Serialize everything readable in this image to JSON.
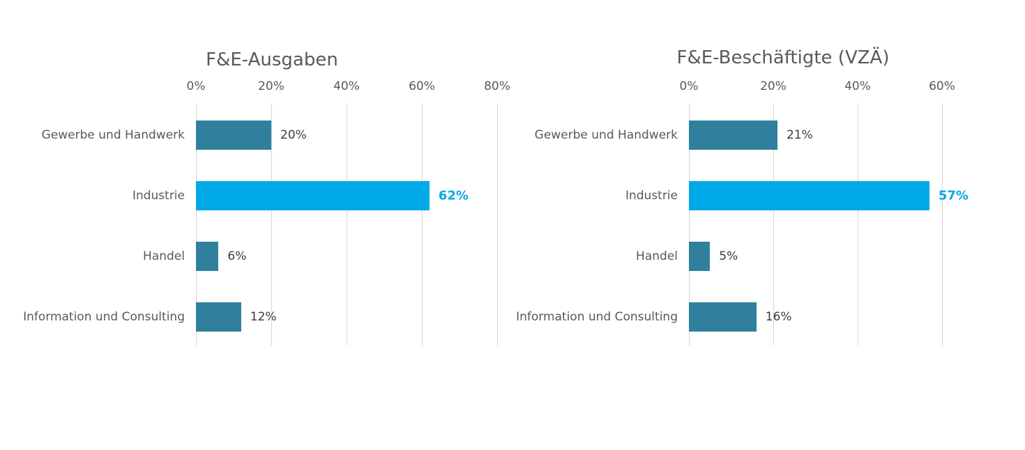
{
  "page": {
    "background_color": "#FFFFFF"
  },
  "chart_data": [
    {
      "type": "bar",
      "orientation": "horizontal",
      "title": "F&E-Ausgaben",
      "categories": [
        "Gewerbe und Handwerk",
        "Industrie",
        "Handel",
        "Information und Consulting"
      ],
      "values": [
        20,
        62,
        6,
        12
      ],
      "value_labels": [
        "20%",
        "62%",
        "6%",
        "12%"
      ],
      "xlim": [
        0,
        80
      ],
      "xticks": [
        0,
        20,
        40,
        60,
        80
      ],
      "xtick_labels": [
        "0%",
        "20%",
        "40%",
        "60%",
        "80%"
      ],
      "highlight_index": 1,
      "grid": true,
      "legend": false,
      "colors": {
        "bar": "#30809D",
        "highlight_bar": "#00A9E8",
        "value_label": "#3B3B3B",
        "highlight_value_label": "#00A9E8",
        "axis_text": "#595959",
        "title": "#595959",
        "gridline": "#D6D6D6"
      }
    },
    {
      "type": "bar",
      "orientation": "horizontal",
      "title": "F&E-Beschäftigte (VZÄ)",
      "categories": [
        "Gewerbe und Handwerk",
        "Industrie",
        "Handel",
        "Information und Consulting"
      ],
      "values": [
        21,
        57,
        5,
        16
      ],
      "value_labels": [
        "21%",
        "57%",
        "5%",
        "16%"
      ],
      "xlim": [
        0,
        60
      ],
      "xticks": [
        0,
        20,
        40,
        60
      ],
      "xtick_labels": [
        "0%",
        "20%",
        "40%",
        "60%"
      ],
      "highlight_index": 1,
      "grid": true,
      "legend": false,
      "colors": {
        "bar": "#30809D",
        "highlight_bar": "#00A9E8",
        "value_label": "#3B3B3B",
        "highlight_value_label": "#00A9E8",
        "axis_text": "#595959",
        "title": "#595959",
        "gridline": "#D6D6D6"
      }
    }
  ]
}
